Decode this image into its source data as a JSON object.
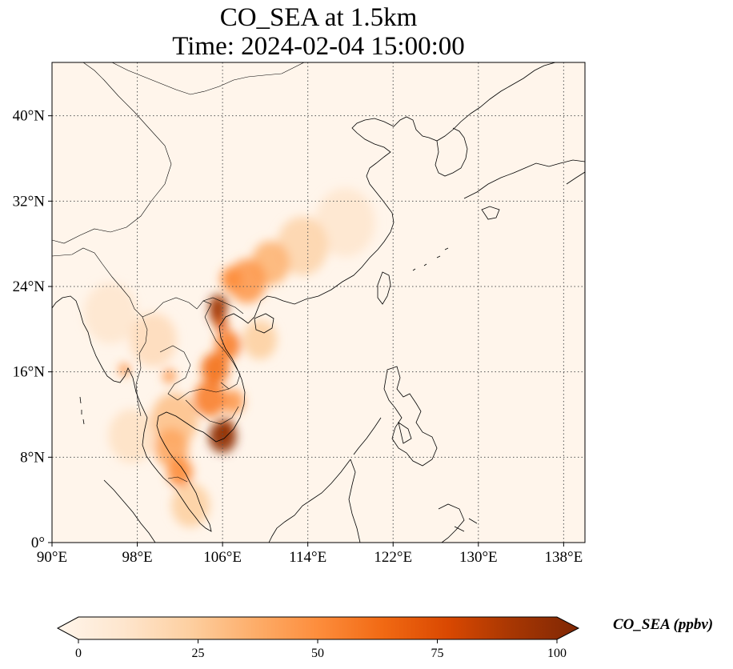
{
  "title": {
    "line1": "CO_SEA at 1.5km",
    "line2": "Time: 2024-02-04 15:00:00"
  },
  "map": {
    "lon_range": [
      90,
      140
    ],
    "lat_range": [
      0,
      45
    ],
    "lon_ticks": [
      {
        "value": 90,
        "label": "90°E"
      },
      {
        "value": 98,
        "label": "98°E"
      },
      {
        "value": 106,
        "label": "106°E"
      },
      {
        "value": 114,
        "label": "114°E"
      },
      {
        "value": 122,
        "label": "122°E"
      },
      {
        "value": 130,
        "label": "130°E"
      },
      {
        "value": 138,
        "label": "138°E"
      }
    ],
    "lat_ticks": [
      {
        "value": 0,
        "label": "0°"
      },
      {
        "value": 8,
        "label": "8°N"
      },
      {
        "value": 16,
        "label": "16°N"
      },
      {
        "value": 24,
        "label": "24°N"
      },
      {
        "value": 32,
        "label": "32°N"
      },
      {
        "value": 40,
        "label": "40°N"
      }
    ],
    "gridlines": "dotted",
    "background_color": "#fff5eb",
    "plumes": [
      {
        "lon": 106.0,
        "lat": 9.9,
        "r": 1.3,
        "value": 95
      },
      {
        "lon": 106.3,
        "lat": 10.7,
        "r": 0.8,
        "value": 85
      },
      {
        "lon": 105.6,
        "lat": 22.2,
        "r": 0.9,
        "value": 90
      },
      {
        "lon": 105.5,
        "lat": 21.3,
        "r": 0.7,
        "value": 85
      },
      {
        "lon": 105.9,
        "lat": 20.4,
        "r": 0.6,
        "value": 70
      },
      {
        "lon": 106.5,
        "lat": 18.5,
        "r": 1.2,
        "value": 55
      },
      {
        "lon": 105.3,
        "lat": 16.3,
        "r": 1.3,
        "value": 60
      },
      {
        "lon": 104.8,
        "lat": 13.5,
        "r": 1.5,
        "value": 55
      },
      {
        "lon": 107.0,
        "lat": 13.2,
        "r": 1.0,
        "value": 45
      },
      {
        "lon": 108.3,
        "lat": 24.5,
        "r": 1.8,
        "value": 45
      },
      {
        "lon": 106.8,
        "lat": 24.7,
        "r": 1.0,
        "value": 50
      },
      {
        "lon": 110.5,
        "lat": 26.2,
        "r": 1.8,
        "value": 35
      },
      {
        "lon": 113.5,
        "lat": 27.8,
        "r": 2.4,
        "value": 22
      },
      {
        "lon": 117.5,
        "lat": 30.0,
        "r": 2.8,
        "value": 12
      },
      {
        "lon": 101.0,
        "lat": 15.6,
        "r": 0.6,
        "value": 45
      },
      {
        "lon": 96.8,
        "lat": 16.2,
        "r": 0.5,
        "value": 50
      },
      {
        "lon": 101.2,
        "lat": 8.9,
        "r": 1.6,
        "value": 40
      },
      {
        "lon": 102.0,
        "lat": 6.6,
        "r": 1.2,
        "value": 50
      },
      {
        "lon": 101.5,
        "lat": 11.5,
        "r": 2.2,
        "value": 30
      },
      {
        "lon": 103.0,
        "lat": 3.5,
        "r": 1.8,
        "value": 25
      },
      {
        "lon": 99.5,
        "lat": 19.0,
        "r": 2.2,
        "value": 18
      },
      {
        "lon": 95.5,
        "lat": 21.5,
        "r": 2.5,
        "value": 12
      },
      {
        "lon": 97.5,
        "lat": 10.0,
        "r": 2.2,
        "value": 15
      },
      {
        "lon": 109.5,
        "lat": 19.0,
        "r": 1.6,
        "value": 25
      }
    ]
  },
  "colorbar": {
    "title": "CO_SEA (ppbv)",
    "min": 0,
    "max": 100,
    "ticks": [
      {
        "value": 0,
        "label": "0"
      },
      {
        "value": 25,
        "label": "25"
      },
      {
        "value": 50,
        "label": "50"
      },
      {
        "value": 75,
        "label": "75"
      },
      {
        "value": 100,
        "label": "100"
      }
    ],
    "colors": [
      "#fff5eb",
      "#fee6ce",
      "#fdd0a2",
      "#fdae6b",
      "#fd8d3c",
      "#f16913",
      "#d94801",
      "#a63603",
      "#7f2704"
    ]
  }
}
